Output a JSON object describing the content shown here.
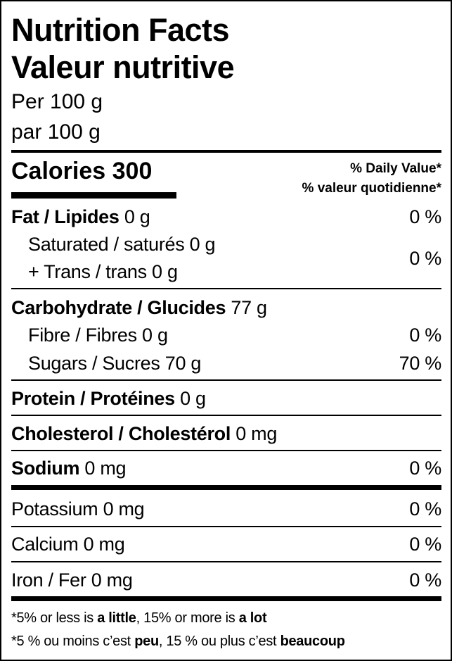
{
  "header": {
    "title_en": "Nutrition Facts",
    "title_fr": "Valeur nutritive",
    "serving_en": "Per 100 g",
    "serving_fr": "par 100 g"
  },
  "calories": {
    "label": "Calories",
    "value": "300"
  },
  "daily_value": {
    "en": "% Daily Value*",
    "fr": "% valeur quotidienne*"
  },
  "nutrients": [
    {
      "name": "Fat / Lipides",
      "amount": "0 g",
      "dv": "0 %"
    },
    {
      "name": "Saturated / saturés",
      "amount": "0 g",
      "dv": "0 %"
    },
    {
      "name": "+ Trans / trans",
      "amount": "0 g"
    },
    {
      "name": "Carbohydrate / Glucides",
      "amount": "77 g"
    },
    {
      "name": "Fibre / Fibres",
      "amount": "0 g",
      "dv": "0 %"
    },
    {
      "name": "Sugars / Sucres",
      "amount": "70 g",
      "dv": "70 %"
    },
    {
      "name": "Protein / Protéines",
      "amount": "0 g"
    },
    {
      "name": "Cholesterol / Cholestérol",
      "amount": "0 mg"
    },
    {
      "name": "Sodium",
      "amount": "0 mg",
      "dv": "0 %"
    },
    {
      "name": "Potassium",
      "amount": "0 mg",
      "dv": "0 %"
    },
    {
      "name": "Calcium",
      "amount": "0 mg",
      "dv": "0 %"
    },
    {
      "name": "Iron / Fer",
      "amount": "0 mg",
      "dv": "0 %"
    }
  ],
  "footnote": {
    "en": {
      "a": "*5% or less is ",
      "b": "a little",
      "c": ", 15% or more is ",
      "d": "a lot"
    },
    "fr": {
      "a": "*5 % ou moins c’est ",
      "b": "peu",
      "c": ", 15 % ou plus c’est ",
      "d": "beaucoup"
    }
  }
}
